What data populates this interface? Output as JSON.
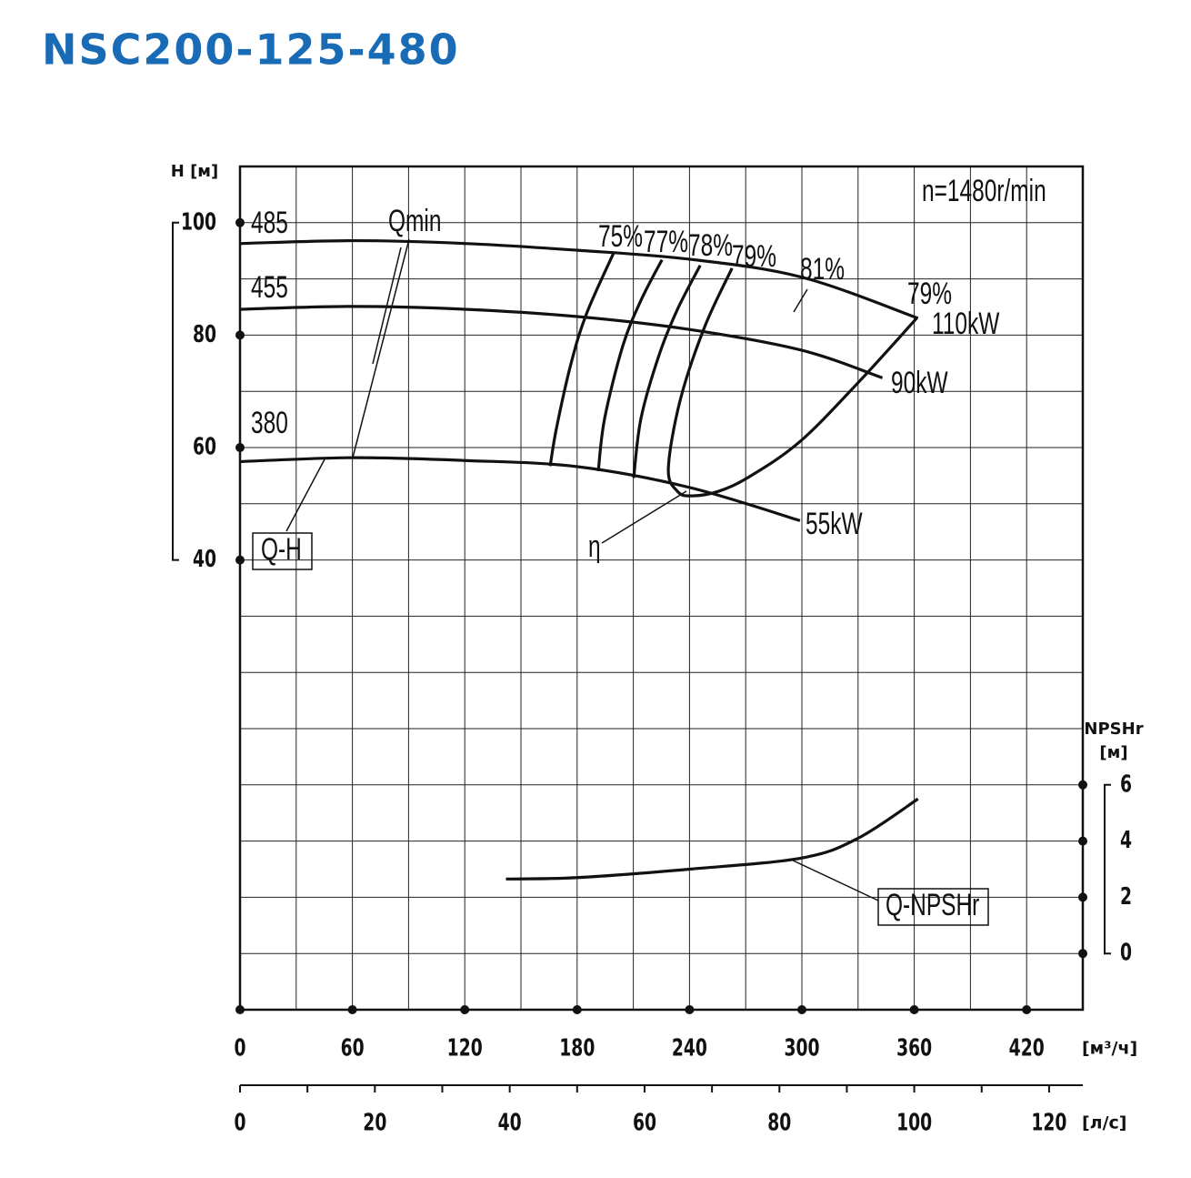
{
  "chart_data": {
    "type": "line",
    "title": "NSC200-125-480",
    "ylabel": "H [м]",
    "y2label": [
      "NPSHr",
      "[м]"
    ],
    "xlabel": "[м³/ч]",
    "x2label": "[л/с]",
    "xlim": [
      0,
      450
    ],
    "xticks": [
      0,
      60,
      120,
      180,
      240,
      300,
      360,
      420
    ],
    "xgrid": [
      0,
      30,
      60,
      90,
      120,
      150,
      180,
      210,
      240,
      270,
      300,
      330,
      360,
      390,
      420,
      450
    ],
    "x2lim": [
      0,
      125
    ],
    "x2ticks": [
      0,
      20,
      40,
      60,
      80,
      100,
      120
    ],
    "x2minorticks": [
      0,
      10,
      20,
      30,
      40,
      50,
      60,
      70,
      80,
      90,
      100,
      110,
      120
    ],
    "ylim": [
      -40,
      110
    ],
    "yticks": [
      40,
      60,
      80,
      100
    ],
    "ygrid": [
      -40,
      -30,
      -20,
      -10,
      0,
      10,
      20,
      30,
      40,
      50,
      60,
      70,
      80,
      90,
      100,
      110
    ],
    "y2lim": [
      -2,
      28
    ],
    "y2ticks": [
      0,
      2,
      4,
      6
    ],
    "grid": true,
    "series": [
      {
        "name": "485",
        "color": "#111111",
        "x": [
          0,
          60,
          120,
          180,
          240,
          300,
          362
        ],
        "values": [
          96.3,
          96.8,
          96.3,
          95.1,
          93.5,
          90.3,
          83.0
        ]
      },
      {
        "name": "455",
        "color": "#111111",
        "x": [
          0,
          60,
          120,
          180,
          240,
          300,
          343
        ],
        "values": [
          84.6,
          85.1,
          84.6,
          83.3,
          81.0,
          77.3,
          72.4
        ]
      },
      {
        "name": "380",
        "color": "#111111",
        "x": [
          0,
          60,
          120,
          180,
          240,
          299
        ],
        "values": [
          57.5,
          58.2,
          57.7,
          56.6,
          52.9,
          47.0
        ]
      },
      {
        "name": "75%",
        "color": "#111111",
        "x": [
          165.6,
          169,
          176.7,
          185,
          199.6
        ],
        "values": [
          56.7,
          63.5,
          74.9,
          83.8,
          94.7
        ]
      },
      {
        "name": "77%",
        "color": "#111111",
        "x": [
          191.3,
          194.7,
          204.4,
          214.1,
          225.3
        ],
        "values": [
          55.8,
          65.2,
          78.1,
          86.2,
          93.4
        ]
      },
      {
        "name": "78%",
        "color": "#111111",
        "x": [
          210.2,
          214.1,
          223.8,
          233.6,
          245.7
        ],
        "values": [
          54.6,
          65.2,
          76.5,
          84.6,
          92.4
        ]
      },
      {
        "name": "79%",
        "color": "#111111",
        "x": [
          262.7,
          248,
          235,
          228.7,
          233.6,
          240.8,
          255.4,
          272.4,
          299.1,
          330.2,
          361.3
        ],
        "values": [
          91.9,
          81.4,
          68.4,
          56.2,
          52.2,
          51.4,
          52.2,
          54.9,
          61.1,
          71.6,
          83.0
        ]
      },
      {
        "name": "Q-NPSHr",
        "color": "#111111",
        "axis": "y2",
        "x": [
          142,
          180,
          240,
          300,
          330,
          362
        ],
        "values": [
          2.65,
          2.7,
          3.0,
          3.4,
          4.1,
          5.5
        ]
      }
    ],
    "annotations": [
      "Qmin",
      "Q-H",
      "η",
      "81%",
      "79%",
      "110kW",
      "90kW",
      "55kW",
      "n=1480r/min"
    ]
  }
}
